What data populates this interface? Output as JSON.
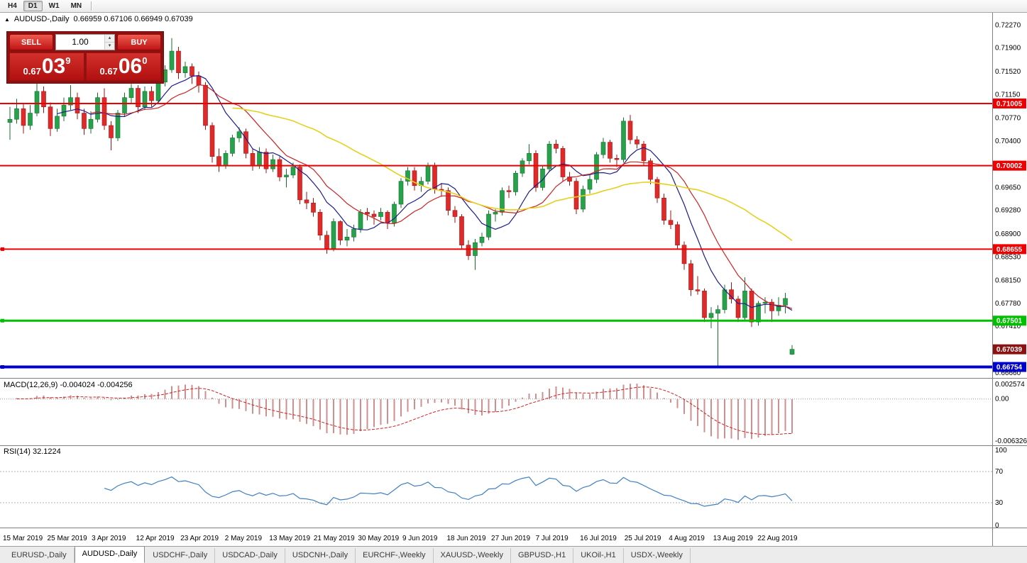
{
  "toolbar": {
    "timeframes": [
      "H4",
      "D1",
      "W1",
      "MN"
    ],
    "active_timeframe": "D1"
  },
  "icons": {
    "collapse": "▲",
    "spinner_up": "▴",
    "spinner_down": "▾"
  },
  "chart": {
    "symbol_header": "AUDUSD-,Daily",
    "ohlc_text": "0.66959 0.67106 0.66949 0.67039",
    "one_click": {
      "sell_label": "SELL",
      "buy_label": "BUY",
      "volume": "1.00",
      "bid": {
        "prefix": "0.67",
        "big": "03",
        "sup": "9"
      },
      "ask": {
        "prefix": "0.67",
        "big": "06",
        "sup": "0"
      }
    },
    "macd_label": "MACD(12,26,9) -0.004024 -0.004256",
    "rsi_label": "RSI(14) 32.1224"
  },
  "chart_data": {
    "type": "candlestick",
    "symbol": "AUDUSD-,Daily",
    "title": "AUDUSD Daily with MACD(12,26,9) and RSI(14)",
    "y_range": {
      "max": 0.724,
      "min": 0.666
    },
    "y_ticks": [
      "0.72270",
      "0.71900",
      "0.71520",
      "0.71150",
      "0.70770",
      "0.70400",
      "0.70020",
      "0.69650",
      "0.69280",
      "0.68900",
      "0.68530",
      "0.68150",
      "0.67780",
      "0.67410",
      "0.66660"
    ],
    "x_labels": [
      "15 Mar 2019",
      "25 Mar 2019",
      "3 Apr 2019",
      "12 Apr 2019",
      "23 Apr 2019",
      "2 May 2019",
      "13 May 2019",
      "21 May 2019",
      "30 May 2019",
      "9 Jun 2019",
      "18 Jun 2019",
      "27 Jun 2019",
      "7 Jul 2019",
      "16 Jul 2019",
      "25 Jul 2019",
      "4 Aug 2019",
      "13 Aug 2019",
      "22 Aug 2019"
    ],
    "candle_colors": {
      "up": "#26a24b",
      "up_border": "#15702f",
      "down": "#e02a2a",
      "down_border": "#9c1515"
    },
    "candles": [
      [
        0.707,
        0.7095,
        0.7042,
        0.7075
      ],
      [
        0.7075,
        0.7108,
        0.7068,
        0.7092
      ],
      [
        0.7092,
        0.71,
        0.7052,
        0.7065
      ],
      [
        0.7065,
        0.7098,
        0.7058,
        0.7085
      ],
      [
        0.7085,
        0.7135,
        0.708,
        0.712
      ],
      [
        0.712,
        0.7128,
        0.7085,
        0.7095
      ],
      [
        0.7095,
        0.7102,
        0.7048,
        0.706
      ],
      [
        0.706,
        0.7092,
        0.7055,
        0.708
      ],
      [
        0.708,
        0.711,
        0.7072,
        0.7098
      ],
      [
        0.7098,
        0.713,
        0.709,
        0.711
      ],
      [
        0.711,
        0.7118,
        0.7075,
        0.7085
      ],
      [
        0.7085,
        0.7092,
        0.705,
        0.706
      ],
      [
        0.706,
        0.7088,
        0.7052,
        0.7075
      ],
      [
        0.7075,
        0.7118,
        0.707,
        0.711
      ],
      [
        0.711,
        0.7125,
        0.7058,
        0.7065
      ],
      [
        0.7065,
        0.7072,
        0.7025,
        0.7045
      ],
      [
        0.7045,
        0.709,
        0.704,
        0.7085
      ],
      [
        0.7085,
        0.7118,
        0.708,
        0.711
      ],
      [
        0.711,
        0.7132,
        0.71,
        0.7125
      ],
      [
        0.7125,
        0.713,
        0.7085,
        0.7095
      ],
      [
        0.7095,
        0.7128,
        0.709,
        0.712
      ],
      [
        0.712,
        0.7128,
        0.7095,
        0.7105
      ],
      [
        0.7105,
        0.714,
        0.71,
        0.7135
      ],
      [
        0.7135,
        0.7162,
        0.7128,
        0.7155
      ],
      [
        0.7155,
        0.7206,
        0.715,
        0.7185
      ],
      [
        0.7185,
        0.7192,
        0.714,
        0.715
      ],
      [
        0.715,
        0.7168,
        0.7142,
        0.716
      ],
      [
        0.716,
        0.7165,
        0.7132,
        0.7145
      ],
      [
        0.7145,
        0.7152,
        0.7118,
        0.713
      ],
      [
        0.713,
        0.7135,
        0.7058,
        0.7065
      ],
      [
        0.7065,
        0.707,
        0.7005,
        0.7015
      ],
      [
        0.7015,
        0.7028,
        0.699,
        0.7
      ],
      [
        0.7,
        0.7025,
        0.6995,
        0.702
      ],
      [
        0.702,
        0.705,
        0.7015,
        0.7045
      ],
      [
        0.7045,
        0.7062,
        0.7038,
        0.7055
      ],
      [
        0.7055,
        0.706,
        0.7012,
        0.702
      ],
      [
        0.702,
        0.7028,
        0.6992,
        0.7
      ],
      [
        0.7,
        0.703,
        0.6995,
        0.7022
      ],
      [
        0.7022,
        0.7028,
        0.6988,
        0.6995
      ],
      [
        0.6995,
        0.7018,
        0.699,
        0.701
      ],
      [
        0.701,
        0.7015,
        0.6975,
        0.6982
      ],
      [
        0.6982,
        0.6995,
        0.6965,
        0.6985
      ],
      [
        0.6985,
        0.7005,
        0.698,
        0.6998
      ],
      [
        0.6998,
        0.7002,
        0.6938,
        0.6945
      ],
      [
        0.6945,
        0.6958,
        0.693,
        0.694
      ],
      [
        0.694,
        0.6948,
        0.6918,
        0.6925
      ],
      [
        0.6925,
        0.693,
        0.688,
        0.6888
      ],
      [
        0.6888,
        0.6895,
        0.6858,
        0.6865
      ],
      [
        0.6865,
        0.6915,
        0.6862,
        0.691
      ],
      [
        0.691,
        0.6912,
        0.6872,
        0.688
      ],
      [
        0.688,
        0.6898,
        0.687,
        0.6885
      ],
      [
        0.6885,
        0.6905,
        0.6878,
        0.6898
      ],
      [
        0.6898,
        0.693,
        0.6892,
        0.6925
      ],
      [
        0.6925,
        0.6932,
        0.6912,
        0.6922
      ],
      [
        0.6922,
        0.6928,
        0.6905,
        0.6918
      ],
      [
        0.6918,
        0.6932,
        0.6912,
        0.6925
      ],
      [
        0.6925,
        0.6928,
        0.6898,
        0.6908
      ],
      [
        0.6908,
        0.6942,
        0.6902,
        0.6938
      ],
      [
        0.6938,
        0.698,
        0.6932,
        0.6975
      ],
      [
        0.6975,
        0.6998,
        0.6968,
        0.6992
      ],
      [
        0.6992,
        0.6998,
        0.696,
        0.6968
      ],
      [
        0.6968,
        0.6982,
        0.6958,
        0.6975
      ],
      [
        0.6975,
        0.7005,
        0.697,
        0.7
      ],
      [
        0.7,
        0.7005,
        0.6955,
        0.6962
      ],
      [
        0.6962,
        0.6972,
        0.695,
        0.696
      ],
      [
        0.696,
        0.6965,
        0.692,
        0.6928
      ],
      [
        0.6928,
        0.6935,
        0.6908,
        0.6918
      ],
      [
        0.6918,
        0.6922,
        0.6865,
        0.6872
      ],
      [
        0.6872,
        0.688,
        0.6848,
        0.6855
      ],
      [
        0.6855,
        0.6882,
        0.6832,
        0.6876
      ],
      [
        0.6876,
        0.6892,
        0.687,
        0.6885
      ],
      [
        0.6885,
        0.6928,
        0.688,
        0.6922
      ],
      [
        0.6922,
        0.693,
        0.691,
        0.6925
      ],
      [
        0.6925,
        0.6965,
        0.692,
        0.696
      ],
      [
        0.696,
        0.6968,
        0.6948,
        0.6958
      ],
      [
        0.6958,
        0.6992,
        0.6952,
        0.6988
      ],
      [
        0.6988,
        0.7012,
        0.6982,
        0.7008
      ],
      [
        0.7008,
        0.7035,
        0.7002,
        0.702
      ],
      [
        0.702,
        0.7025,
        0.6958,
        0.6965
      ],
      [
        0.6965,
        0.7,
        0.696,
        0.6995
      ],
      [
        0.6995,
        0.704,
        0.699,
        0.7035
      ],
      [
        0.7035,
        0.7042,
        0.702,
        0.7028
      ],
      [
        0.7028,
        0.7032,
        0.6975,
        0.6982
      ],
      [
        0.6982,
        0.699,
        0.6968,
        0.6975
      ],
      [
        0.6975,
        0.698,
        0.6922,
        0.693
      ],
      [
        0.693,
        0.6968,
        0.6925,
        0.6962
      ],
      [
        0.6962,
        0.6985,
        0.6955,
        0.6978
      ],
      [
        0.6978,
        0.7022,
        0.6972,
        0.7018
      ],
      [
        0.7018,
        0.7045,
        0.7012,
        0.7038
      ],
      [
        0.7038,
        0.7042,
        0.7005,
        0.7012
      ],
      [
        0.7012,
        0.7018,
        0.6998,
        0.701
      ],
      [
        0.701,
        0.7078,
        0.7005,
        0.7072
      ],
      [
        0.7072,
        0.7082,
        0.7035,
        0.7042
      ],
      [
        0.7042,
        0.7048,
        0.7028,
        0.7035
      ],
      [
        0.7035,
        0.704,
        0.7,
        0.7008
      ],
      [
        0.7008,
        0.7012,
        0.697,
        0.6978
      ],
      [
        0.6978,
        0.6982,
        0.694,
        0.6948
      ],
      [
        0.6948,
        0.6955,
        0.6905,
        0.6912
      ],
      [
        0.6912,
        0.6928,
        0.6898,
        0.6905
      ],
      [
        0.6905,
        0.691,
        0.6865,
        0.6872
      ],
      [
        0.6872,
        0.6878,
        0.6832,
        0.6842
      ],
      [
        0.6842,
        0.6848,
        0.679,
        0.68
      ],
      [
        0.68,
        0.6822,
        0.6792,
        0.6798
      ],
      [
        0.6798,
        0.6802,
        0.6748,
        0.6755
      ],
      [
        0.6755,
        0.6772,
        0.6738,
        0.6762
      ],
      [
        0.6762,
        0.6775,
        0.6677,
        0.6768
      ],
      [
        0.6768,
        0.6808,
        0.6762,
        0.68
      ],
      [
        0.68,
        0.6812,
        0.6778,
        0.6785
      ],
      [
        0.6785,
        0.679,
        0.6748,
        0.6755
      ],
      [
        0.6755,
        0.682,
        0.675,
        0.6798
      ],
      [
        0.6798,
        0.6802,
        0.674,
        0.6748
      ],
      [
        0.6748,
        0.6782,
        0.6742,
        0.6778
      ],
      [
        0.6778,
        0.6788,
        0.6762,
        0.678
      ],
      [
        0.678,
        0.6785,
        0.6748,
        0.6766
      ],
      [
        0.6766,
        0.6788,
        0.6758,
        0.6775
      ],
      [
        0.6775,
        0.6795,
        0.6762,
        0.6786
      ],
      [
        0.66959,
        0.67106,
        0.66949,
        0.67039
      ]
    ],
    "moving_averages": [
      {
        "period": 8,
        "color": "#1c1c8c",
        "width": 1.2
      },
      {
        "period": 13,
        "color": "#cc2222",
        "width": 1.2
      },
      {
        "period": 34,
        "color": "#e6d01e",
        "width": 1.6
      }
    ],
    "hlines": [
      {
        "price": 0.71005,
        "label": "0.71005",
        "color": "#ee0000",
        "width": 2,
        "handle": false
      },
      {
        "price": 0.70002,
        "label": "0.70002",
        "color": "#ee0000",
        "width": 2,
        "handle": false
      },
      {
        "price": 0.68655,
        "label": "0.68655",
        "color": "#ee0000",
        "width": 2,
        "handle": true
      },
      {
        "price": 0.67501,
        "label": "0.67501",
        "color": "#00c000",
        "width": 3,
        "handle": true
      },
      {
        "price": 0.66754,
        "label": "0.66754",
        "color": "#0000cc",
        "width": 4,
        "handle": true
      }
    ],
    "price_badge": {
      "label": "0.67039",
      "price": 0.67039,
      "color": "#8b1212"
    },
    "macd": {
      "fast": 12,
      "slow": 26,
      "signal": 9,
      "value": -0.004024,
      "signal_value": -0.004256,
      "axis_labels": [
        "0.002574",
        "0.00",
        "-0.006326"
      ],
      "range": {
        "max": 0.002574,
        "min": -0.006326
      },
      "hist_color": "#cf8f8f",
      "signal_color": "#cc2222"
    },
    "rsi": {
      "period": 14,
      "value": 32.1224,
      "color": "#4080c0",
      "levels": [
        100,
        70,
        30,
        0
      ],
      "guide_levels": [
        70,
        30
      ]
    }
  },
  "tabs": {
    "items": [
      "EURUSD-,Daily",
      "AUDUSD-,Daily",
      "USDCHF-,Daily",
      "USDCAD-,Daily",
      "USDCNH-,Daily",
      "EURCHF-,Weekly",
      "XAUUSD-,Weekly",
      "GBPUSD-,H1",
      "UKOil-,H1",
      "USDX-,Weekly"
    ],
    "active": "AUDUSD-,Daily"
  }
}
